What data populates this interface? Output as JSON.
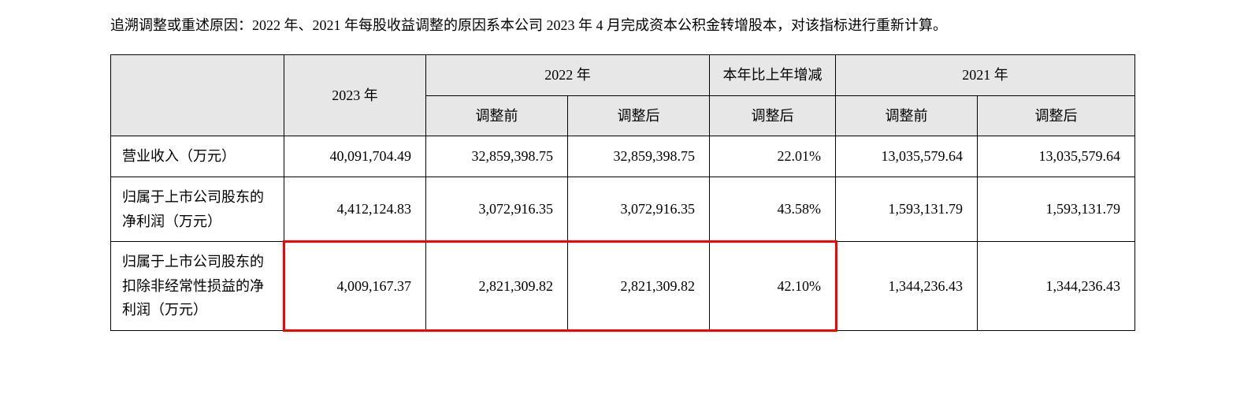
{
  "note": "追溯调整或重述原因：2022 年、2021 年每股收益调整的原因系本公司 2023 年 4 月完成资本公积金转增股本，对该指标进行重新计算。",
  "table": {
    "header": {
      "corner_blank": "",
      "y2023": "2023 年",
      "y2022": "2022 年",
      "change": "本年比上年增减",
      "y2021": "2021 年",
      "before": "调整前",
      "after": "调整后"
    },
    "rows": [
      {
        "label": "营业收入（万元）",
        "y2023": "40,091,704.49",
        "y2022_before": "32,859,398.75",
        "y2022_after": "32,859,398.75",
        "change": "22.01%",
        "y2021_before": "13,035,579.64",
        "y2021_after": "13,035,579.64"
      },
      {
        "label": "归属于上市公司股东的净利润（万元）",
        "y2023": "4,412,124.83",
        "y2022_before": "3,072,916.35",
        "y2022_after": "3,072,916.35",
        "change": "43.58%",
        "y2021_before": "1,593,131.79",
        "y2021_after": "1,593,131.79"
      },
      {
        "label": "归属于上市公司股东的扣除非经常性损益的净利润（万元）",
        "y2023": "4,009,167.37",
        "y2022_before": "2,821,309.82",
        "y2022_after": "2,821,309.82",
        "change": "42.10%",
        "y2021_before": "1,344,236.43",
        "y2021_after": "1,344,236.43"
      }
    ],
    "highlight": {
      "row_index": 2,
      "col_start": 1,
      "col_end": 4,
      "color": "#ff0000"
    },
    "header_bg": "#e7e7e7",
    "border_color": "#000000"
  }
}
